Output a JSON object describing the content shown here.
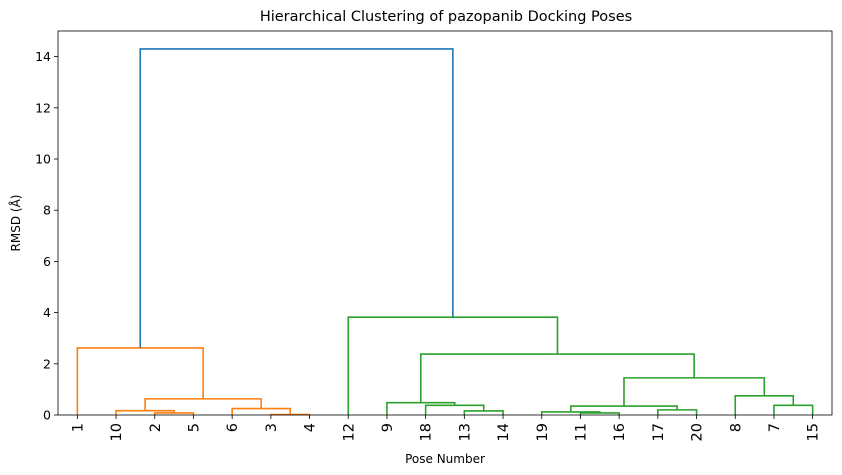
{
  "chart_data": {
    "type": "dendrogram",
    "title": "Hierarchical Clustering of pazopanib Docking Poses",
    "xlabel": "Pose Number",
    "ylabel": "RMSD (Å)",
    "ylim": [
      0,
      15
    ],
    "yticks": [
      0,
      2,
      4,
      6,
      8,
      10,
      12,
      14
    ],
    "grid": false,
    "leaf_order": [
      "1",
      "10",
      "2",
      "5",
      "6",
      "3",
      "4",
      "12",
      "9",
      "18",
      "13",
      "14",
      "19",
      "11",
      "16",
      "17",
      "20",
      "8",
      "7",
      "15"
    ],
    "colors": {
      "root": "#1f77b4",
      "cluster1": "#ff7f0e",
      "cluster2": "#2ca02c"
    },
    "merges": [
      {
        "left": "2",
        "right": "5",
        "height": 0.08,
        "color": "cluster1"
      },
      {
        "left": "10",
        "right": "m0",
        "height": 0.17,
        "color": "cluster1"
      },
      {
        "left": "3",
        "right": "4",
        "height": 0.02,
        "color": "cluster1"
      },
      {
        "left": "6",
        "right": "m2",
        "height": 0.25,
        "color": "cluster1"
      },
      {
        "left": "m1",
        "right": "m3",
        "height": 0.63,
        "color": "cluster1"
      },
      {
        "left": "1",
        "right": "m4",
        "height": 2.62,
        "color": "cluster1"
      },
      {
        "left": "13",
        "right": "14",
        "height": 0.16,
        "color": "cluster2"
      },
      {
        "left": "18",
        "right": "m6",
        "height": 0.38,
        "color": "cluster2"
      },
      {
        "left": "9",
        "right": "m7",
        "height": 0.48,
        "color": "cluster2"
      },
      {
        "left": "11",
        "right": "16",
        "height": 0.08,
        "color": "cluster2"
      },
      {
        "left": "19",
        "right": "m9",
        "height": 0.12,
        "color": "cluster2"
      },
      {
        "left": "17",
        "right": "20",
        "height": 0.2,
        "color": "cluster2"
      },
      {
        "left": "m10",
        "right": "m11",
        "height": 0.35,
        "color": "cluster2"
      },
      {
        "left": "7",
        "right": "15",
        "height": 0.38,
        "color": "cluster2"
      },
      {
        "left": "8",
        "right": "m13",
        "height": 0.75,
        "color": "cluster2"
      },
      {
        "left": "m12",
        "right": "m14",
        "height": 1.45,
        "color": "cluster2"
      },
      {
        "left": "m8",
        "right": "m15",
        "height": 2.38,
        "color": "cluster2"
      },
      {
        "left": "12",
        "right": "m16",
        "height": 3.82,
        "color": "cluster2"
      },
      {
        "left": "m5",
        "right": "m17",
        "height": 14.3,
        "color": "root"
      }
    ]
  }
}
